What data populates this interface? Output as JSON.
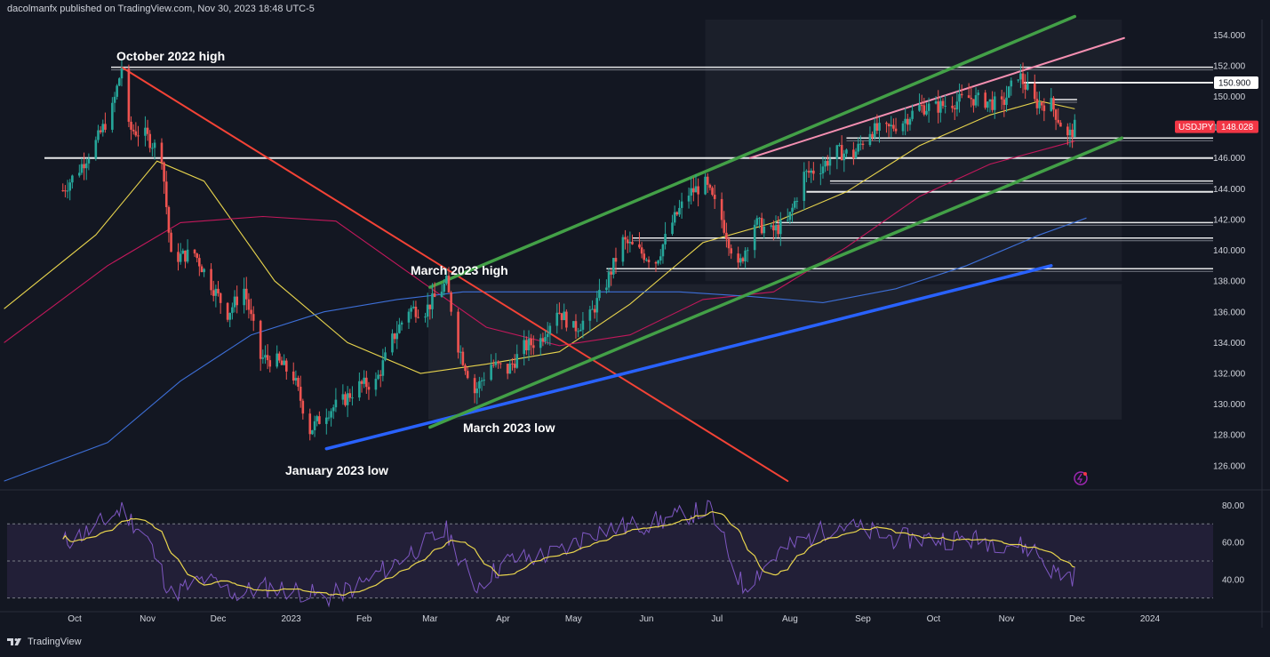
{
  "header": {
    "publisher": "dacolmanfx published on TradingView.com, Nov 30, 2023 18:48 UTC-5"
  },
  "footer": {
    "brand": "TradingView"
  },
  "colors": {
    "background": "#131722",
    "up": "#26a69a",
    "down": "#ef5350",
    "ma_fast": "#e8d44d",
    "ma_mid": "#c2185b",
    "ma_slow": "#3d6fd8",
    "channel": "#43a047",
    "resistance_red": "#f44336",
    "support_blue": "#2962ff",
    "pink_line": "#f48fb1",
    "rsi_line": "#7e57c2",
    "rsi_ma": "#e8d44d",
    "rsi_band": "#2a2340"
  },
  "chart_data": [
    {
      "type": "candlestick",
      "symbol": "USDJPY",
      "last_price": "148.028",
      "price_tag": "150.900",
      "ylim": [
        124.6,
        155.0
      ],
      "y_ticks": [
        "154.000",
        "152.000",
        "150.000",
        "148.000",
        "146.000",
        "144.000",
        "142.000",
        "140.000",
        "138.000",
        "136.000",
        "134.000",
        "132.000",
        "130.000",
        "128.000",
        "126.000"
      ],
      "x_ticks": [
        "Oct",
        "Nov",
        "Dec",
        "2023",
        "Feb",
        "Mar",
        "Apr",
        "May",
        "Jun",
        "Jul",
        "Aug",
        "Sep",
        "Oct",
        "Nov",
        "Dec",
        "2024"
      ],
      "x_tick_dates": [
        "2022-10-01",
        "2022-11-01",
        "2022-12-01",
        "2023-01-01",
        "2023-02-01",
        "2023-03-01",
        "2023-04-01",
        "2023-05-01",
        "2023-06-01",
        "2023-07-01",
        "2023-08-01",
        "2023-09-01",
        "2023-10-01",
        "2023-11-01",
        "2023-12-01",
        "2024-01-01"
      ],
      "annotations": [
        {
          "text": "October 2022 high",
          "date": "2022-10-21",
          "price": 151.9
        },
        {
          "text": "March 2023 high",
          "date": "2023-03-08",
          "price": 137.9
        },
        {
          "text": "March 2023 low",
          "date": "2023-03-24",
          "price": 129.6
        },
        {
          "text": "January 2023 low",
          "date": "2023-01-16",
          "price": 127.2
        }
      ],
      "horizontal_levels": [
        151.9,
        150.9,
        149.8,
        147.3,
        146.0,
        144.5,
        143.8,
        141.8,
        140.8,
        138.8
      ],
      "trendlines": [
        {
          "name": "resistance_red",
          "from": [
            "2022-10-21",
            151.9
          ],
          "to": [
            "2023-07-31",
            125.0
          ]
        },
        {
          "name": "support_blue",
          "from": [
            "2023-01-16",
            127.1
          ],
          "to": [
            "2023-11-20",
            139.0
          ]
        },
        {
          "name": "channel_upper",
          "from": [
            "2023-03-01",
            137.6
          ],
          "to": [
            "2023-11-30",
            155.2
          ]
        },
        {
          "name": "channel_lower",
          "from": [
            "2023-03-01",
            128.5
          ],
          "to": [
            "2023-12-20",
            147.3
          ]
        },
        {
          "name": "pink_line",
          "from": [
            "2023-07-15",
            146.0
          ],
          "to": [
            "2023-12-21",
            153.8
          ]
        }
      ],
      "candles_approx": [
        [
          "2022-09-26",
          143.9
        ],
        [
          "2022-10-03",
          145.3
        ],
        [
          "2022-10-10",
          147.0
        ],
        [
          "2022-10-17",
          149.2
        ],
        [
          "2022-10-21",
          151.9
        ],
        [
          "2022-10-24",
          147.9
        ],
        [
          "2022-10-31",
          147.5
        ],
        [
          "2022-11-07",
          146.2
        ],
        [
          "2022-11-11",
          139.5
        ],
        [
          "2022-11-21",
          139.8
        ],
        [
          "2022-11-28",
          137.8
        ],
        [
          "2022-12-05",
          135.9
        ],
        [
          "2022-12-12",
          137.5
        ],
        [
          "2022-12-19",
          133.0
        ],
        [
          "2022-12-26",
          132.8
        ],
        [
          "2023-01-02",
          131.8
        ],
        [
          "2023-01-09",
          128.3
        ],
        [
          "2023-01-16",
          129.5
        ],
        [
          "2023-01-23",
          130.2
        ],
        [
          "2023-01-30",
          131.2
        ],
        [
          "2023-02-06",
          131.4
        ],
        [
          "2023-02-13",
          134.2
        ],
        [
          "2023-02-20",
          136.2
        ],
        [
          "2023-02-27",
          136.1
        ],
        [
          "2023-03-08",
          137.9
        ],
        [
          "2023-03-13",
          133.8
        ],
        [
          "2023-03-20",
          130.8
        ],
        [
          "2023-03-27",
          132.6
        ],
        [
          "2023-04-03",
          132.2
        ],
        [
          "2023-04-10",
          133.7
        ],
        [
          "2023-04-17",
          134.2
        ],
        [
          "2023-04-24",
          136.2
        ],
        [
          "2023-05-01",
          134.9
        ],
        [
          "2023-05-08",
          135.7
        ],
        [
          "2023-05-15",
          137.9
        ],
        [
          "2023-05-22",
          140.6
        ],
        [
          "2023-05-29",
          139.9
        ],
        [
          "2023-06-05",
          139.3
        ],
        [
          "2023-06-12",
          141.8
        ],
        [
          "2023-06-19",
          143.7
        ],
        [
          "2023-06-26",
          144.3
        ],
        [
          "2023-07-03",
          142.0
        ],
        [
          "2023-07-10",
          138.8
        ],
        [
          "2023-07-17",
          141.8
        ],
        [
          "2023-07-24",
          141.2
        ],
        [
          "2023-07-31",
          141.8
        ],
        [
          "2023-08-07",
          144.9
        ],
        [
          "2023-08-14",
          145.4
        ],
        [
          "2023-08-21",
          146.4
        ],
        [
          "2023-08-28",
          146.2
        ],
        [
          "2023-09-04",
          147.8
        ],
        [
          "2023-09-11",
          147.8
        ],
        [
          "2023-09-18",
          148.4
        ],
        [
          "2023-09-25",
          149.3
        ],
        [
          "2023-10-02",
          149.3
        ],
        [
          "2023-10-09",
          149.6
        ],
        [
          "2023-10-16",
          149.9
        ],
        [
          "2023-10-23",
          149.7
        ],
        [
          "2023-10-30",
          149.4
        ],
        [
          "2023-11-06",
          151.5
        ],
        [
          "2023-11-13",
          149.6
        ],
        [
          "2023-11-20",
          149.5
        ],
        [
          "2023-11-27",
          147.3
        ],
        [
          "2023-11-30",
          148.0
        ]
      ]
    },
    {
      "type": "line",
      "name": "RSI",
      "ylim": [
        25,
        86
      ],
      "y_ticks": [
        "80.00",
        "60.00",
        "40.00"
      ],
      "bands": [
        70,
        50,
        30
      ],
      "values_approx": [
        [
          "2022-09-26",
          60
        ],
        [
          "2022-10-07",
          66
        ],
        [
          "2022-10-21",
          78
        ],
        [
          "2022-11-01",
          62
        ],
        [
          "2022-11-11",
          32
        ],
        [
          "2022-11-25",
          40
        ],
        [
          "2022-12-09",
          32
        ],
        [
          "2022-12-20",
          36
        ],
        [
          "2023-01-03",
          34
        ],
        [
          "2023-01-16",
          30
        ],
        [
          "2023-02-01",
          38
        ],
        [
          "2023-02-21",
          55
        ],
        [
          "2023-03-08",
          66
        ],
        [
          "2023-03-20",
          36
        ],
        [
          "2023-04-03",
          50
        ],
        [
          "2023-04-24",
          54
        ],
        [
          "2023-05-10",
          66
        ],
        [
          "2023-06-01",
          70
        ],
        [
          "2023-06-28",
          78
        ],
        [
          "2023-07-12",
          36
        ],
        [
          "2023-07-28",
          55
        ],
        [
          "2023-08-21",
          70
        ],
        [
          "2023-09-15",
          62
        ],
        [
          "2023-10-11",
          62
        ],
        [
          "2023-11-01",
          60
        ],
        [
          "2023-11-13",
          56
        ],
        [
          "2023-11-21",
          44
        ],
        [
          "2023-11-30",
          42
        ]
      ]
    }
  ]
}
